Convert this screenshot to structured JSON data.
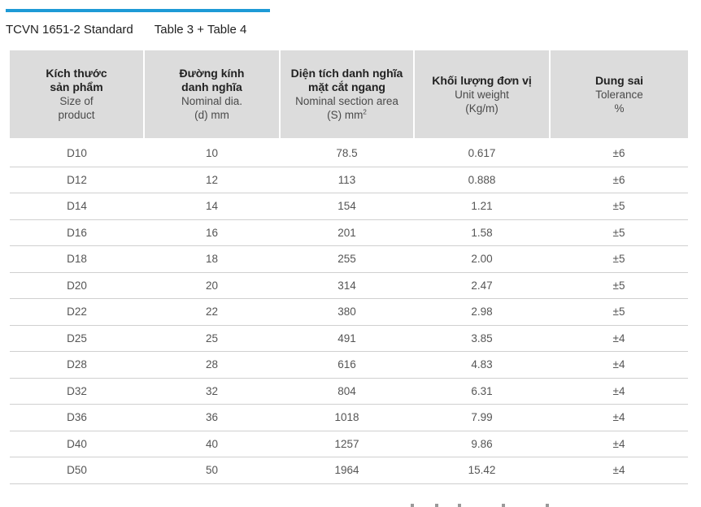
{
  "header": {
    "standard": "TCVN 1651-2 Standard",
    "tables": "Table 3 + Table 4"
  },
  "columns": [
    {
      "vi": [
        "Kích thước",
        "sản phẩm"
      ],
      "en": [
        "Size of",
        "product"
      ]
    },
    {
      "vi": [
        "Đường kính",
        "danh nghĩa"
      ],
      "en": [
        "Nominal dia.",
        "(d) mm"
      ]
    },
    {
      "vi": [
        "Diện tích danh nghĩa",
        "mặt cắt ngang"
      ],
      "en": [
        "Nominal section area",
        "(S) mm"
      ],
      "unit_sup": "2"
    },
    {
      "vi": [
        "Khối lượng đơn vị"
      ],
      "en": [
        "Unit weight",
        "(Kg/m)"
      ]
    },
    {
      "vi": [
        "Dung sai"
      ],
      "en": [
        "Tolerance",
        "%"
      ]
    }
  ],
  "rows": [
    [
      "D10",
      "10",
      "78.5",
      "0.617",
      "±6"
    ],
    [
      "D12",
      "12",
      "113",
      "0.888",
      "±6"
    ],
    [
      "D14",
      "14",
      "154",
      "1.21",
      "±5"
    ],
    [
      "D16",
      "16",
      "201",
      "1.58",
      "±5"
    ],
    [
      "D18",
      "18",
      "255",
      "2.00",
      "±5"
    ],
    [
      "D20",
      "20",
      "314",
      "2.47",
      "±5"
    ],
    [
      "D22",
      "22",
      "380",
      "2.98",
      "±5"
    ],
    [
      "D25",
      "25",
      "491",
      "3.85",
      "±4"
    ],
    [
      "D28",
      "28",
      "616",
      "4.83",
      "±4"
    ],
    [
      "D32",
      "32",
      "804",
      "6.31",
      "±4"
    ],
    [
      "D36",
      "36",
      "1018",
      "7.99",
      "±4"
    ],
    [
      "D40",
      "40",
      "1257",
      "9.86",
      "±4"
    ],
    [
      "D50",
      "50",
      "1964",
      "15.42",
      "±4"
    ]
  ],
  "colors": {
    "accent": "#1e9ad6",
    "header_bg": "#dcdcdc"
  }
}
